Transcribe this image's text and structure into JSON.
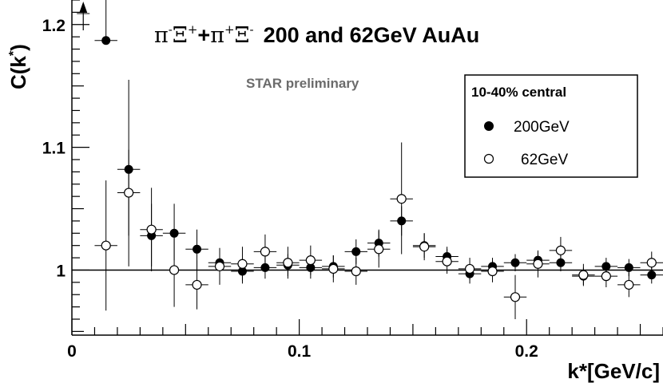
{
  "chart_data": {
    "type": "scatter",
    "title_particles": {
      "pi": "π",
      "xi": "Ξ",
      "minus": "-",
      "plus": "+",
      "plus_sign": "+"
    },
    "title_rest": "200 and 62GeV AuAu",
    "annotation": "STAR preliminary",
    "xlabel": "k*[GeV/c]",
    "ylabel_main": "C(k",
    "ylabel_star": "*",
    "ylabel_close": ")",
    "xlim": [
      0,
      0.26
    ],
    "ylim": [
      0.947,
      1.22
    ],
    "x_ticks": [
      {
        "v": 0,
        "label": "0"
      },
      {
        "v": 0.1,
        "label": "0.1"
      },
      {
        "v": 0.2,
        "label": "0.2"
      }
    ],
    "y_ticks": [
      {
        "v": 1,
        "label": "1"
      },
      {
        "v": 1.1,
        "label": "1.1"
      },
      {
        "v": 1.2,
        "label": "1.2"
      }
    ],
    "reference_line": 1.0,
    "legend": {
      "header": "10-40% central",
      "entries": [
        "200GeV",
        "62GeV"
      ],
      "placement": "top-right"
    },
    "series": [
      {
        "name": "200GeV",
        "marker": "filled-circle",
        "x_err": 0.005,
        "points": [
          {
            "x": 0.015,
            "y": 1.187,
            "lo": 1.19,
            "hi": 1.23
          },
          {
            "x": 0.025,
            "y": 1.082,
            "lo": 1.003,
            "hi": 1.155
          },
          {
            "x": 0.035,
            "y": 1.028,
            "lo": 1.003,
            "hi": 1.054
          },
          {
            "x": 0.045,
            "y": 1.03,
            "lo": 1.008,
            "hi": 1.054
          },
          {
            "x": 0.055,
            "y": 1.017,
            "lo": 1.001,
            "hi": 1.033
          },
          {
            "x": 0.065,
            "y": 1.006,
            "lo": 0.995,
            "hi": 1.017
          },
          {
            "x": 0.075,
            "y": 0.999,
            "lo": 0.989,
            "hi": 1.008
          },
          {
            "x": 0.085,
            "y": 1.002,
            "lo": 0.993,
            "hi": 1.011
          },
          {
            "x": 0.095,
            "y": 1.004,
            "lo": 0.995,
            "hi": 1.013
          },
          {
            "x": 0.105,
            "y": 1.002,
            "lo": 0.993,
            "hi": 1.011
          },
          {
            "x": 0.115,
            "y": 1.003,
            "lo": 0.994,
            "hi": 1.012
          },
          {
            "x": 0.125,
            "y": 1.015,
            "lo": 1.005,
            "hi": 1.025
          },
          {
            "x": 0.135,
            "y": 1.022,
            "lo": 1.011,
            "hi": 1.033
          },
          {
            "x": 0.145,
            "y": 1.04,
            "lo": 1.028,
            "hi": 1.052
          },
          {
            "x": 0.155,
            "y": 1.02,
            "lo": 1.01,
            "hi": 1.03
          },
          {
            "x": 0.165,
            "y": 1.011,
            "lo": 1.003,
            "hi": 1.019
          },
          {
            "x": 0.175,
            "y": 0.997,
            "lo": 0.989,
            "hi": 1.005
          },
          {
            "x": 0.185,
            "y": 1.003,
            "lo": 0.996,
            "hi": 1.01
          },
          {
            "x": 0.195,
            "y": 1.006,
            "lo": 0.999,
            "hi": 1.013
          },
          {
            "x": 0.205,
            "y": 1.008,
            "lo": 1.001,
            "hi": 1.015
          },
          {
            "x": 0.215,
            "y": 1.006,
            "lo": 0.999,
            "hi": 1.013
          },
          {
            "x": 0.225,
            "y": 0.995,
            "lo": 0.988,
            "hi": 1.002
          },
          {
            "x": 0.235,
            "y": 1.003,
            "lo": 0.996,
            "hi": 1.01
          },
          {
            "x": 0.245,
            "y": 1.002,
            "lo": 0.995,
            "hi": 1.009
          },
          {
            "x": 0.255,
            "y": 0.996,
            "lo": 0.989,
            "hi": 1.003
          }
        ]
      },
      {
        "name": "62GeV",
        "marker": "open-circle",
        "x_err": 0.005,
        "points": [
          {
            "x": 0.015,
            "y": 1.02,
            "lo": 0.967,
            "hi": 1.073
          },
          {
            "x": 0.025,
            "y": 1.063,
            "lo": 1.028,
            "hi": 1.098
          },
          {
            "x": 0.035,
            "y": 1.033,
            "lo": 0.999,
            "hi": 1.067
          },
          {
            "x": 0.045,
            "y": 1.0,
            "lo": 0.97,
            "hi": 1.03
          },
          {
            "x": 0.055,
            "y": 0.988,
            "lo": 0.968,
            "hi": 1.008
          },
          {
            "x": 0.065,
            "y": 1.003,
            "lo": 0.988,
            "hi": 1.018
          },
          {
            "x": 0.075,
            "y": 1.005,
            "lo": 0.991,
            "hi": 1.019
          },
          {
            "x": 0.085,
            "y": 1.015,
            "lo": 1.001,
            "hi": 1.029
          },
          {
            "x": 0.095,
            "y": 1.006,
            "lo": 0.993,
            "hi": 1.019
          },
          {
            "x": 0.105,
            "y": 1.008,
            "lo": 0.996,
            "hi": 1.02
          },
          {
            "x": 0.115,
            "y": 1.001,
            "lo": 0.99,
            "hi": 1.012
          },
          {
            "x": 0.125,
            "y": 0.999,
            "lo": 0.988,
            "hi": 1.01
          },
          {
            "x": 0.135,
            "y": 1.017,
            "lo": 1.002,
            "hi": 1.032
          },
          {
            "x": 0.145,
            "y": 1.058,
            "lo": 1.013,
            "hi": 1.104
          },
          {
            "x": 0.155,
            "y": 1.019,
            "lo": 1.008,
            "hi": 1.03
          },
          {
            "x": 0.165,
            "y": 1.007,
            "lo": 0.997,
            "hi": 1.017
          },
          {
            "x": 0.175,
            "y": 1.001,
            "lo": 0.992,
            "hi": 1.01
          },
          {
            "x": 0.185,
            "y": 0.999,
            "lo": 0.99,
            "hi": 1.008
          },
          {
            "x": 0.195,
            "y": 0.978,
            "lo": 0.96,
            "hi": 0.996
          },
          {
            "x": 0.205,
            "y": 1.005,
            "lo": 0.994,
            "hi": 1.016
          },
          {
            "x": 0.215,
            "y": 1.016,
            "lo": 1.005,
            "hi": 1.027
          },
          {
            "x": 0.225,
            "y": 0.996,
            "lo": 0.987,
            "hi": 1.005
          },
          {
            "x": 0.235,
            "y": 0.995,
            "lo": 0.986,
            "hi": 1.004
          },
          {
            "x": 0.245,
            "y": 0.988,
            "lo": 0.978,
            "hi": 0.998
          },
          {
            "x": 0.255,
            "y": 1.006,
            "lo": 0.997,
            "hi": 1.015
          }
        ]
      }
    ],
    "offscale_arrow": {
      "x": 0.005,
      "direction": "up"
    }
  }
}
